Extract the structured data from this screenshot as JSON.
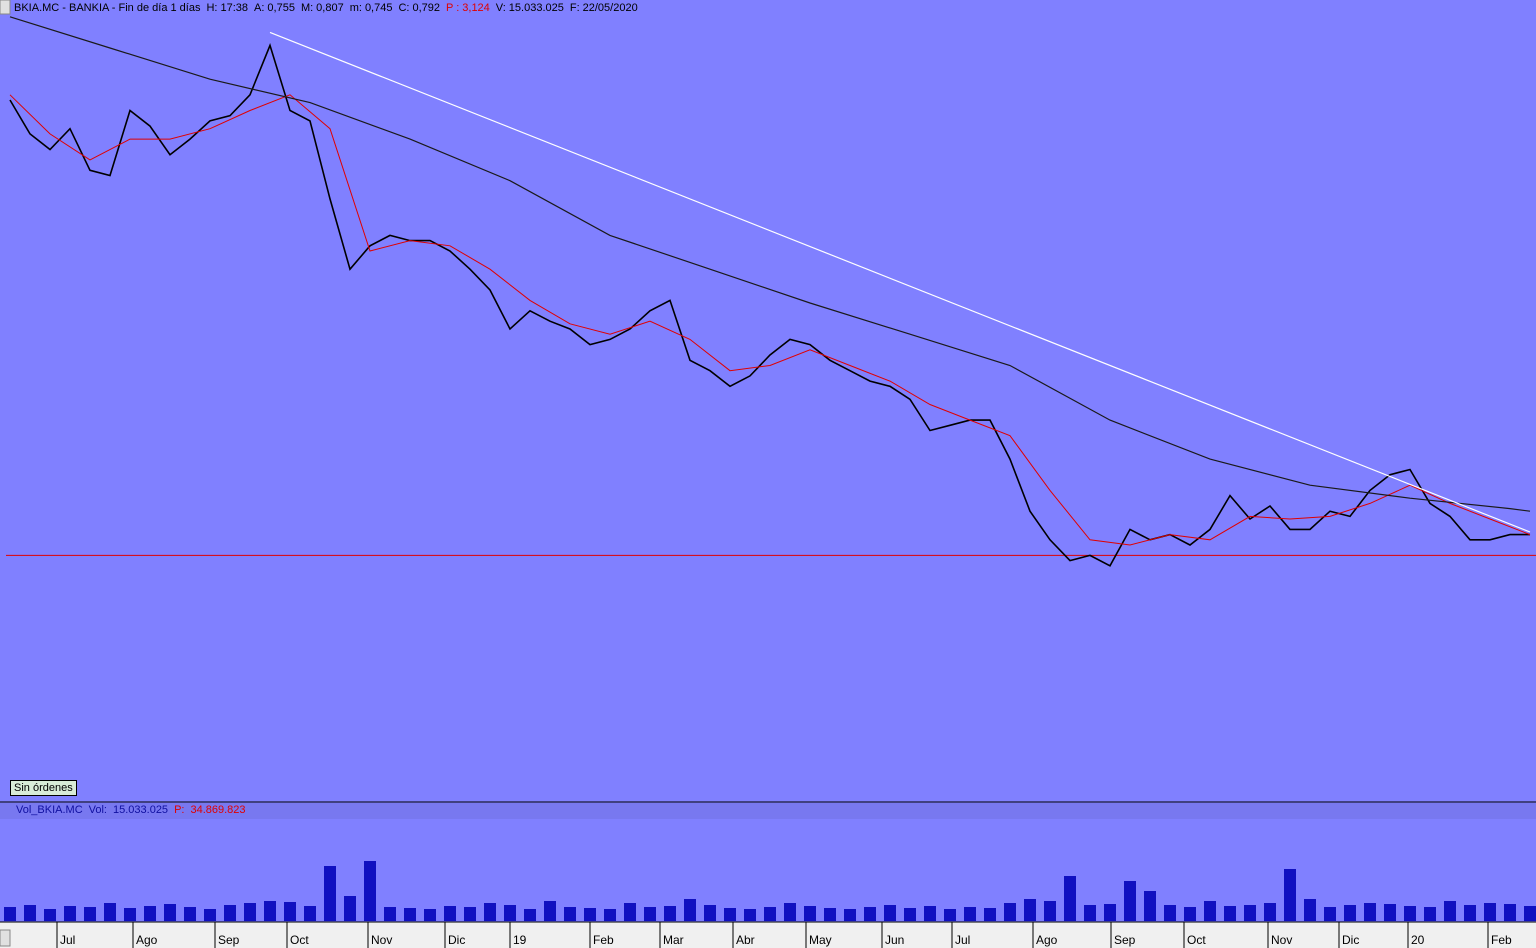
{
  "header": {
    "symbol": "BKIA.MC - BANKIA - Fin de día 1 días",
    "fields": [
      {
        "label": "H:",
        "value": "17:38"
      },
      {
        "label": "A:",
        "value": "0,755"
      },
      {
        "label": "M:",
        "value": "0,807"
      },
      {
        "label": "m:",
        "value": "0,745"
      },
      {
        "label": "C:",
        "value": "0,792"
      },
      {
        "label": "P :",
        "value": "3,124"
      },
      {
        "label": "V:",
        "value": "15.033.025"
      },
      {
        "label": "F:",
        "value": "22/05/2020"
      }
    ]
  },
  "button": "Sin órdenes",
  "chart_data": [
    {
      "type": "line",
      "xlim": [
        -0.5,
        76.3
      ],
      "ylim": [
        0.86,
        3.873
      ],
      "xticks": [
        {
          "value": 2.35,
          "label": "Jul"
        },
        {
          "value": 6.15,
          "label": "Ago"
        },
        {
          "value": 10.25,
          "label": "Sep"
        },
        {
          "value": 13.85,
          "label": "Oct"
        },
        {
          "value": 17.9,
          "label": "Nov"
        },
        {
          "value": 21.75,
          "label": "Dic"
        },
        {
          "value": 25,
          "label": "19"
        },
        {
          "value": 29,
          "label": "Feb"
        },
        {
          "value": 32.5,
          "label": "Mar"
        },
        {
          "value": 36.15,
          "label": "Abr"
        },
        {
          "value": 39.8,
          "label": "May"
        },
        {
          "value": 43.6,
          "label": "Jun"
        },
        {
          "value": 47.1,
          "label": "Jul"
        },
        {
          "value": 51.15,
          "label": "Ago"
        },
        {
          "value": 55.05,
          "label": "Sep"
        },
        {
          "value": 58.7,
          "label": "Oct"
        },
        {
          "value": 62.9,
          "label": "Nov"
        },
        {
          "value": 66.45,
          "label": "Dic"
        },
        {
          "value": 69.9,
          "label": "20"
        },
        {
          "value": 73.9,
          "label": "Feb"
        }
      ],
      "hlines": [
        {
          "value": 1.8,
          "color": "#e00000"
        }
      ],
      "series": [
        {
          "color": "#000000",
          "width": 1.6,
          "x": [
            0,
            1,
            2,
            3,
            4,
            5,
            6,
            7,
            8,
            9,
            10,
            11,
            12,
            13,
            14,
            15,
            16,
            17,
            18,
            19,
            20,
            21,
            22,
            23,
            24,
            25,
            26,
            27,
            28,
            29,
            30,
            31,
            32,
            33,
            34,
            35,
            36,
            37,
            38,
            39,
            40,
            41,
            42,
            43,
            44,
            45,
            46,
            47,
            48,
            49,
            50,
            51,
            52,
            53,
            54,
            55,
            56,
            57,
            58,
            59,
            60,
            61,
            62,
            63,
            64,
            65,
            66,
            67,
            68,
            69,
            70,
            71,
            72,
            73,
            74,
            75,
            76
          ],
          "values": [
            3.55,
            3.42,
            3.36,
            3.44,
            3.28,
            3.26,
            3.51,
            3.45,
            3.34,
            3.4,
            3.47,
            3.49,
            3.57,
            3.76,
            3.51,
            3.47,
            3.17,
            2.9,
            2.99,
            3.03,
            3.01,
            3.01,
            2.97,
            2.9,
            2.82,
            2.67,
            2.74,
            2.7,
            2.67,
            2.61,
            2.63,
            2.67,
            2.74,
            2.78,
            2.55,
            2.51,
            2.45,
            2.49,
            2.57,
            2.63,
            2.61,
            2.55,
            2.51,
            2.47,
            2.45,
            2.4,
            2.28,
            2.3,
            2.32,
            2.32,
            2.17,
            1.97,
            1.86,
            1.78,
            1.8,
            1.76,
            1.9,
            1.86,
            1.88,
            1.84,
            1.9,
            2.03,
            1.94,
            1.99,
            1.9,
            1.9,
            1.97,
            1.95,
            2.05,
            2.11,
            2.13,
            2.0,
            1.95,
            1.86,
            1.86,
            1.88,
            1.88
          ]
        },
        {
          "color": "#e00000",
          "width": 1,
          "x": [
            0,
            2,
            4,
            6,
            8,
            10,
            12,
            14,
            16,
            18,
            20,
            22,
            24,
            26,
            28,
            30,
            32,
            34,
            36,
            38,
            40,
            42,
            44,
            46,
            48,
            50,
            52,
            54,
            56,
            58,
            60,
            62,
            64,
            66,
            68,
            70,
            72,
            74,
            76
          ],
          "values": [
            3.57,
            3.42,
            3.32,
            3.4,
            3.4,
            3.44,
            3.51,
            3.57,
            3.44,
            2.97,
            3.01,
            2.99,
            2.9,
            2.78,
            2.69,
            2.65,
            2.7,
            2.63,
            2.51,
            2.53,
            2.59,
            2.53,
            2.47,
            2.38,
            2.32,
            2.26,
            2.05,
            1.86,
            1.84,
            1.88,
            1.86,
            1.95,
            1.94,
            1.95,
            2.0,
            2.07,
            2.0,
            1.94,
            1.88
          ]
        },
        {
          "color": "#1a1a1a",
          "width": 1.2,
          "x": [
            0,
            5,
            10,
            15,
            20,
            25,
            30,
            35,
            40,
            45,
            50,
            55,
            60,
            65,
            70,
            75,
            76
          ],
          "values": [
            3.87,
            3.75,
            3.63,
            3.54,
            3.4,
            3.24,
            3.03,
            2.9,
            2.77,
            2.65,
            2.53,
            2.32,
            2.17,
            2.07,
            2.02,
            1.98,
            1.97
          ]
        },
        {
          "color": "#ffffff",
          "width": 1.2,
          "x": [
            13,
            76
          ],
          "values": [
            3.81,
            1.89
          ]
        }
      ]
    },
    {
      "type": "bar",
      "title": "Vol_BKIA.MC",
      "subtitle_fields": [
        {
          "label": "Vol:",
          "value": "15.033.025"
        },
        {
          "label": "P:",
          "value": "34.869.823"
        }
      ],
      "color": "#1010c0",
      "xlim": [
        -0.5,
        76.3
      ],
      "ylim": [
        0,
        60
      ],
      "x": [
        0,
        1,
        2,
        3,
        4,
        5,
        6,
        7,
        8,
        9,
        10,
        11,
        12,
        13,
        14,
        15,
        16,
        17,
        18,
        19,
        20,
        21,
        22,
        23,
        24,
        25,
        26,
        27,
        28,
        29,
        30,
        31,
        32,
        33,
        34,
        35,
        36,
        37,
        38,
        39,
        40,
        41,
        42,
        43,
        44,
        45,
        46,
        47,
        48,
        49,
        50,
        51,
        52,
        53,
        54,
        55,
        56,
        57,
        58,
        59,
        60,
        61,
        62,
        63,
        64,
        65,
        66,
        67,
        68,
        69,
        70,
        71,
        72,
        73,
        74,
        75,
        76
      ],
      "values": [
        14,
        16,
        12,
        15,
        14,
        18,
        13,
        15,
        17,
        14,
        12,
        16,
        18,
        20,
        19,
        15,
        55,
        25,
        60,
        14,
        13,
        12,
        15,
        14,
        18,
        16,
        12,
        20,
        14,
        13,
        12,
        18,
        14,
        15,
        22,
        16,
        13,
        12,
        14,
        18,
        15,
        13,
        12,
        14,
        16,
        13,
        15,
        12,
        14,
        13,
        18,
        22,
        20,
        45,
        16,
        17,
        40,
        30,
        16,
        14,
        20,
        15,
        16,
        18,
        52,
        22,
        14,
        16,
        18,
        17,
        15,
        14,
        20,
        16,
        18,
        17,
        15
      ]
    }
  ]
}
